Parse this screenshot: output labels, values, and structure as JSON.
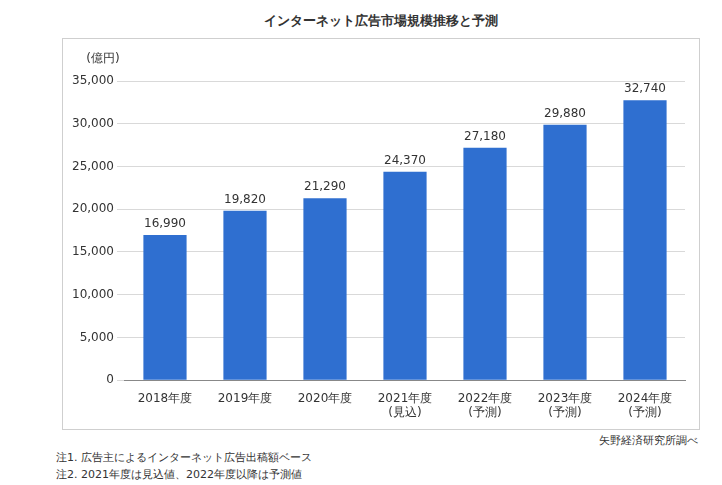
{
  "chart_data": {
    "type": "bar",
    "title": "インターネット広告市場規模推移と予測",
    "y_label": "(億円)",
    "categories": [
      "2018年度",
      "2019年度",
      "2020年度",
      [
        "2021年度",
        "(見込)"
      ],
      [
        "2022年度",
        "(予測)"
      ],
      [
        "2023年度",
        "(予測)"
      ],
      [
        "2024年度",
        "(予測)"
      ]
    ],
    "values": [
      16990,
      19820,
      21290,
      24370,
      27180,
      29880,
      32740
    ],
    "value_labels": [
      "16,990",
      "19,820",
      "21,290",
      "24,370",
      "27,180",
      "29,880",
      "32,740"
    ],
    "data_labels": true,
    "color": "#2f6fd0",
    "ylim": [
      0,
      35000
    ],
    "yticks": [
      0,
      {
        "value": 5000,
        "label": "5,000"
      },
      {
        "value": 10000,
        "label": "10,000"
      },
      {
        "value": 15000,
        "label": "15,000"
      },
      {
        "value": 20000,
        "label": "20,000"
      },
      {
        "value": 25000,
        "label": "25,000"
      },
      {
        "value": 30000,
        "label": "30,000"
      },
      {
        "value": 35000,
        "label": "35,000"
      }
    ],
    "grid": true,
    "notes": [
      "注1. 広告主によるインターネット広告出稿額ベース",
      "注2. 2021年度は見込値、2022年度以降は予測値"
    ],
    "source": "矢野経済研究所調べ"
  }
}
